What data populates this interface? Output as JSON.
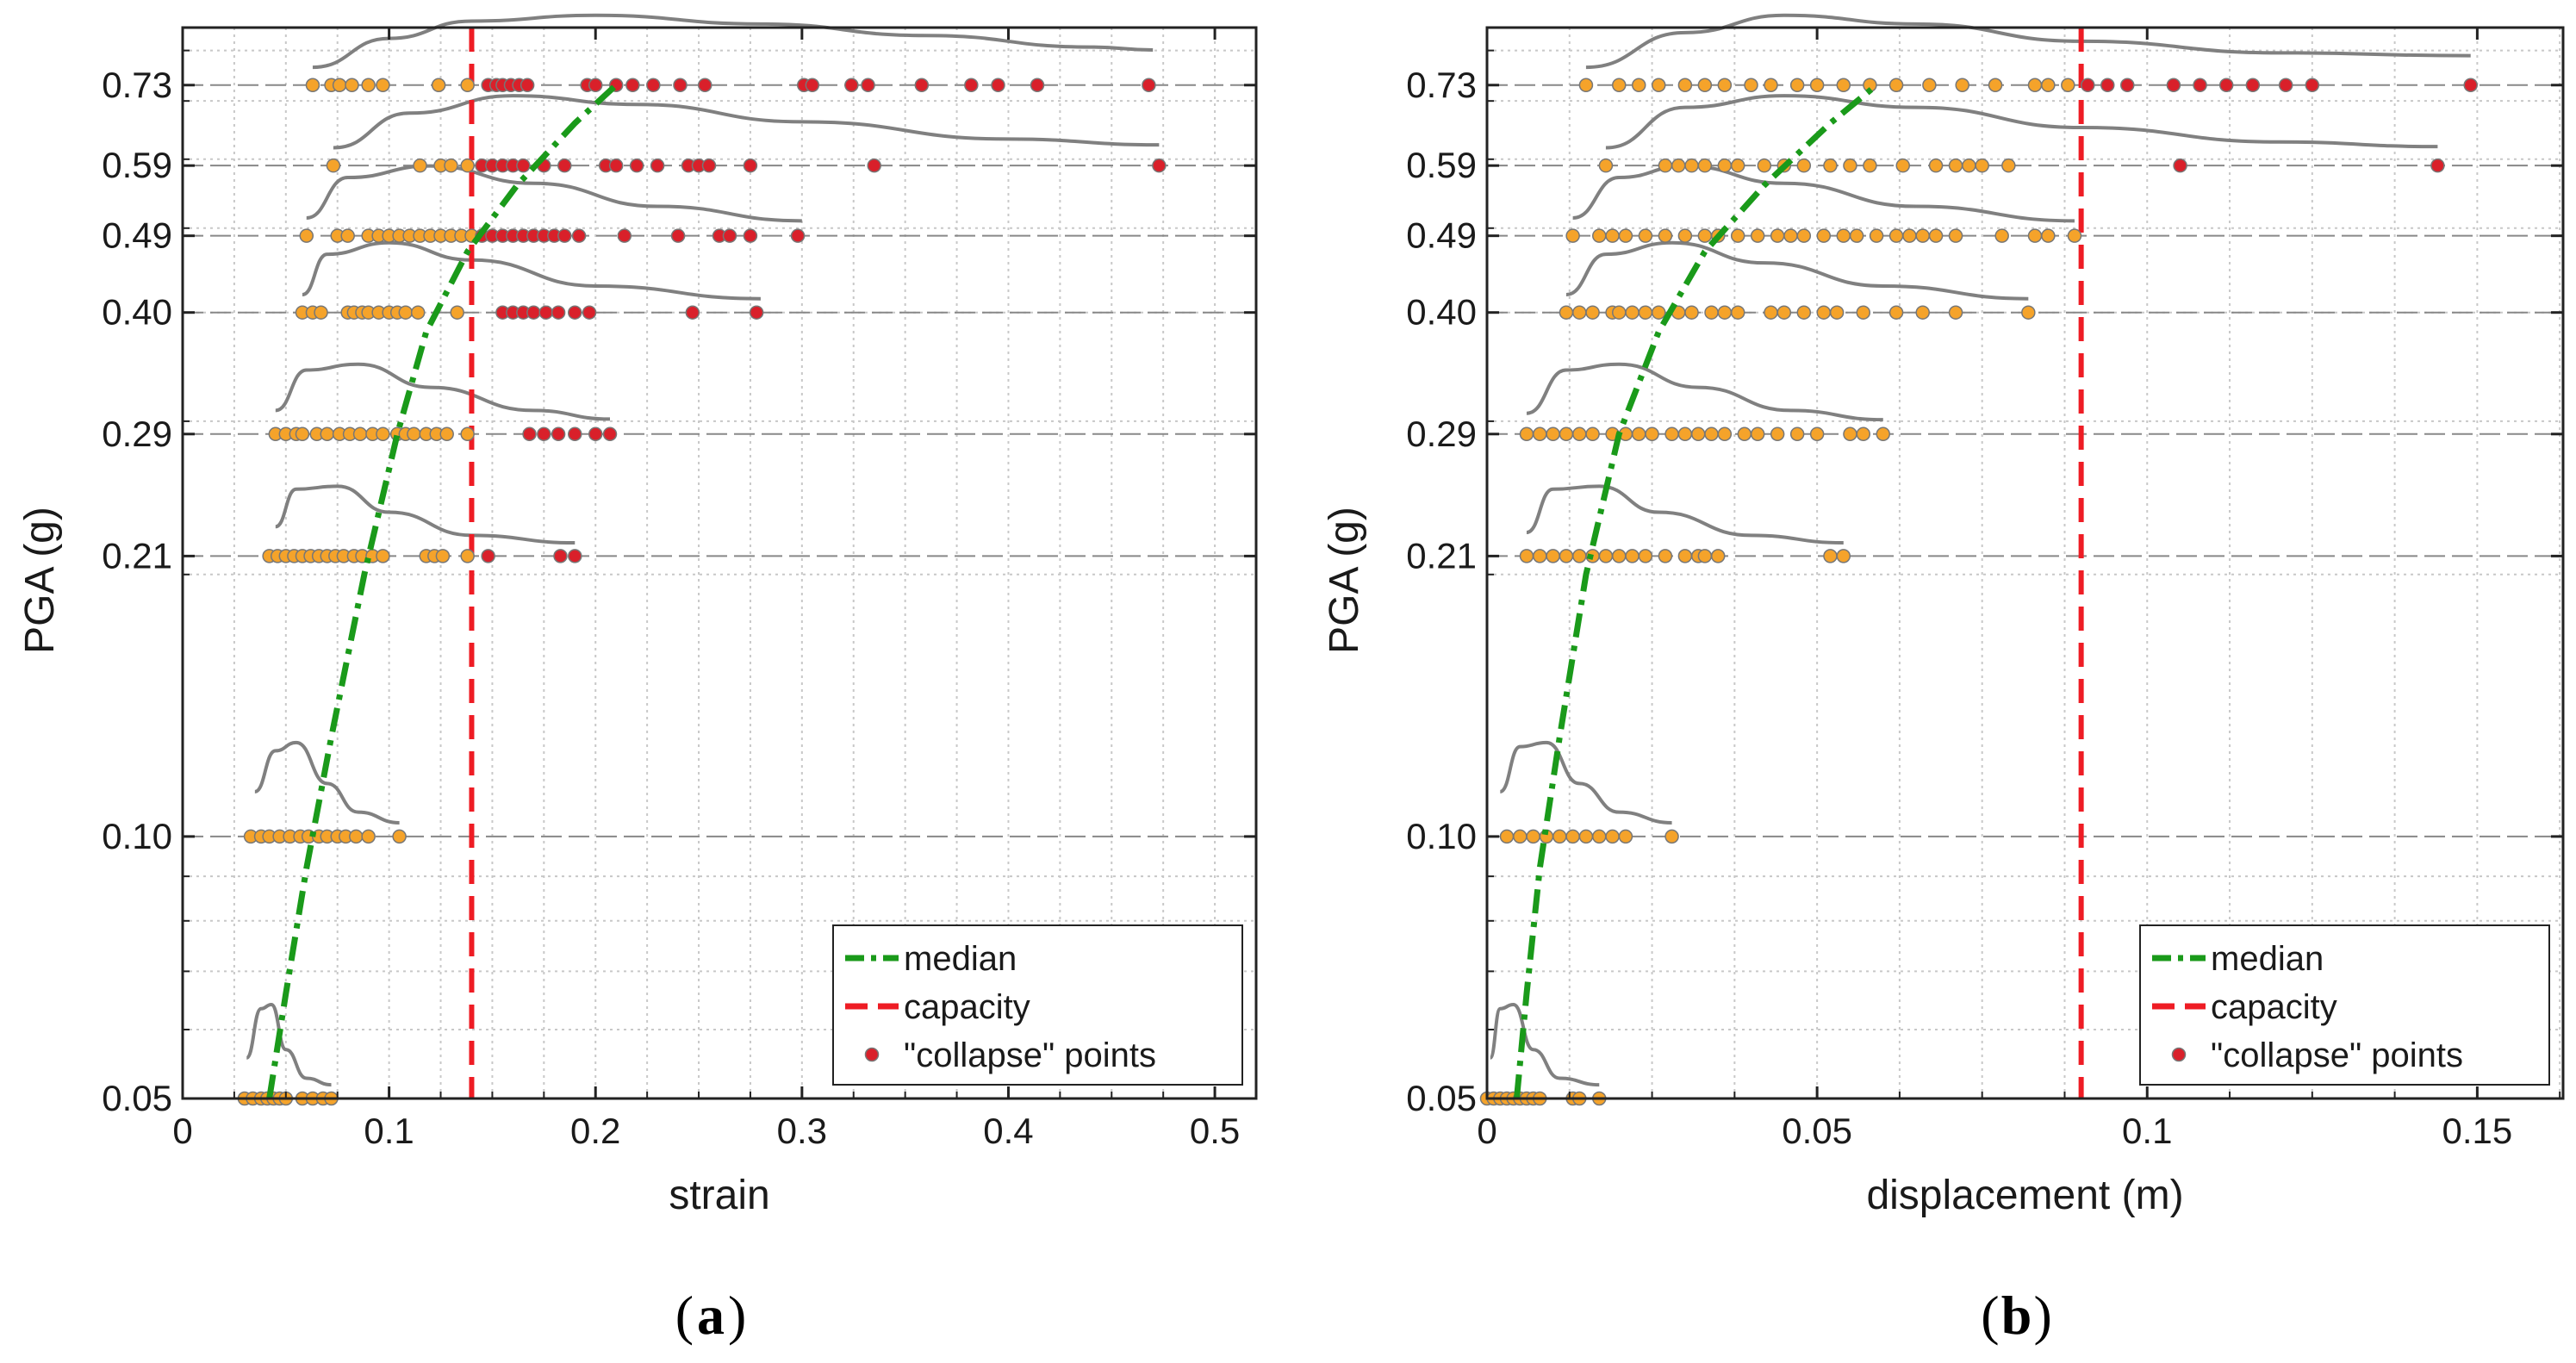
{
  "colors": {
    "median": "#1a9a1a",
    "capacity": "#ee1c24",
    "point_fill": "#f5a32a",
    "collapse_fill": "#d9202a",
    "point_edge": "#777777",
    "density_curve": "#808080",
    "grid": "#c8c8c8",
    "level_line": "#888888"
  },
  "legend": {
    "median": "median",
    "capacity": "capacity",
    "collapse": "\"collapse\" points"
  },
  "chart_data": [
    {
      "id": "a",
      "type": "scatter",
      "caption_letter": "a",
      "xlabel": "strain",
      "ylabel": "PGA (g)",
      "xlim": [
        0,
        0.52
      ],
      "ylim": [
        0.05,
        0.85
      ],
      "yscale": "log",
      "xticks": [
        0,
        0.1,
        0.2,
        0.3,
        0.4,
        0.5
      ],
      "xtick_labels": [
        "0",
        "0.1",
        "0.2",
        "0.3",
        "0.4",
        "0.5"
      ],
      "yticks": [
        0.05,
        0.1,
        0.21,
        0.29,
        0.4,
        0.49,
        0.59,
        0.73
      ],
      "ytick_labels": [
        "0.05",
        "0.10",
        "0.21",
        "0.29",
        "0.40",
        "0.49",
        "0.59",
        "0.73"
      ],
      "capacity": 0.14,
      "median": {
        "x": [
          0.042,
          0.05,
          0.06,
          0.072,
          0.088,
          0.104,
          0.118,
          0.138,
          0.162,
          0.19,
          0.21
        ],
        "y": [
          0.05,
          0.066,
          0.092,
          0.13,
          0.2,
          0.29,
          0.38,
          0.47,
          0.56,
          0.66,
          0.73
        ]
      },
      "levels": [
        {
          "pga": 0.73,
          "points": [
            0.063,
            0.072,
            0.076,
            0.082,
            0.09,
            0.097,
            0.124,
            0.138,
            0.148,
            0.152,
            0.155,
            0.159,
            0.163,
            0.167,
            0.196,
            0.2,
            0.21,
            0.218,
            0.228,
            0.241,
            0.253,
            0.301,
            0.305,
            0.324,
            0.332,
            0.358,
            0.382,
            0.395,
            0.414,
            0.468
          ],
          "curve": {
            "x": [
              0.063,
              0.1,
              0.14,
              0.2,
              0.28,
              0.36,
              0.44,
              0.47
            ],
            "h": [
              0.1,
              0.6,
              0.9,
              1.0,
              0.85,
              0.65,
              0.45,
              0.4
            ]
          }
        },
        {
          "pga": 0.59,
          "points": [
            0.073,
            0.115,
            0.125,
            0.13,
            0.138,
            0.145,
            0.15,
            0.155,
            0.16,
            0.165,
            0.175,
            0.185,
            0.205,
            0.21,
            0.22,
            0.23,
            0.245,
            0.25,
            0.255,
            0.275,
            0.335,
            0.473
          ],
          "curve": {
            "x": [
              0.073,
              0.11,
              0.16,
              0.22,
              0.3,
              0.4,
              0.473
            ],
            "h": [
              0.1,
              0.7,
              1.0,
              0.85,
              0.55,
              0.25,
              0.15
            ]
          }
        },
        {
          "pga": 0.49,
          "points": [
            0.06,
            0.075,
            0.08,
            0.09,
            0.095,
            0.1,
            0.105,
            0.11,
            0.115,
            0.12,
            0.125,
            0.13,
            0.135,
            0.14,
            0.145,
            0.15,
            0.155,
            0.16,
            0.165,
            0.17,
            0.175,
            0.18,
            0.185,
            0.192,
            0.214,
            0.24,
            0.26,
            0.265,
            0.275,
            0.298
          ],
          "curve": {
            "x": [
              0.06,
              0.08,
              0.12,
              0.17,
              0.23,
              0.3
            ],
            "h": [
              0.1,
              0.8,
              1.0,
              0.7,
              0.3,
              0.05
            ]
          }
        },
        {
          "pga": 0.4,
          "points": [
            0.058,
            0.063,
            0.067,
            0.08,
            0.083,
            0.087,
            0.09,
            0.095,
            0.1,
            0.104,
            0.108,
            0.114,
            0.133,
            0.155,
            0.16,
            0.165,
            0.17,
            0.176,
            0.182,
            0.19,
            0.197,
            0.247,
            0.278
          ],
          "curve": {
            "x": [
              0.058,
              0.07,
              0.1,
              0.14,
              0.2,
              0.28
            ],
            "h": [
              0.1,
              0.8,
              1.0,
              0.7,
              0.25,
              0.03
            ]
          }
        },
        {
          "pga": 0.29,
          "points": [
            0.045,
            0.05,
            0.055,
            0.058,
            0.065,
            0.07,
            0.076,
            0.081,
            0.086,
            0.092,
            0.097,
            0.104,
            0.108,
            0.112,
            0.118,
            0.123,
            0.128,
            0.138,
            0.168,
            0.175,
            0.182,
            0.19,
            0.2,
            0.207
          ],
          "curve": {
            "x": [
              0.045,
              0.06,
              0.085,
              0.12,
              0.17,
              0.207
            ],
            "h": [
              0.2,
              0.9,
              1.0,
              0.6,
              0.2,
              0.05
            ]
          }
        },
        {
          "pga": 0.21,
          "points": [
            0.042,
            0.046,
            0.05,
            0.054,
            0.058,
            0.062,
            0.066,
            0.07,
            0.074,
            0.078,
            0.083,
            0.087,
            0.092,
            0.097,
            0.118,
            0.122,
            0.126,
            0.138,
            0.148,
            0.183,
            0.19
          ],
          "curve": {
            "x": [
              0.045,
              0.055,
              0.075,
              0.1,
              0.14,
              0.19
            ],
            "h": [
              0.3,
              0.95,
              1.0,
              0.55,
              0.15,
              0.02
            ]
          }
        },
        {
          "pga": 0.1,
          "points": [
            0.033,
            0.038,
            0.042,
            0.047,
            0.052,
            0.057,
            0.061,
            0.066,
            0.07,
            0.075,
            0.079,
            0.084,
            0.09,
            0.105
          ],
          "curve": {
            "x": [
              0.035,
              0.045,
              0.055,
              0.07,
              0.085,
              0.105
            ],
            "h": [
              0.4,
              0.9,
              1.0,
              0.5,
              0.15,
              0.02
            ]
          }
        },
        {
          "pga": 0.05,
          "points": [
            0.03,
            0.034,
            0.038,
            0.041,
            0.044,
            0.047,
            0.05,
            0.058,
            0.063,
            0.068,
            0.072
          ],
          "curve": {
            "x": [
              0.031,
              0.038,
              0.043,
              0.05,
              0.06,
              0.072
            ],
            "h": [
              0.35,
              0.95,
              1.0,
              0.45,
              0.1,
              0.02
            ]
          }
        }
      ]
    },
    {
      "id": "b",
      "type": "scatter",
      "caption_letter": "b",
      "xlabel": "displacement (m)",
      "ylabel": "PGA (g)",
      "xlim": [
        0,
        0.163
      ],
      "ylim": [
        0.05,
        0.85
      ],
      "yscale": "log",
      "xticks": [
        0,
        0.05,
        0.1,
        0.15
      ],
      "xtick_labels": [
        "0",
        "0.05",
        "0.1",
        "0.15"
      ],
      "yticks": [
        0.05,
        0.1,
        0.21,
        0.29,
        0.4,
        0.49,
        0.59,
        0.73
      ],
      "ytick_labels": [
        "0.05",
        "0.10",
        "0.21",
        "0.29",
        "0.40",
        "0.49",
        "0.59",
        "0.73"
      ],
      "capacity": 0.09,
      "median": {
        "x": [
          0.0045,
          0.006,
          0.008,
          0.011,
          0.015,
          0.02,
          0.026,
          0.033,
          0.042,
          0.052,
          0.059
        ],
        "y": [
          0.05,
          0.066,
          0.092,
          0.13,
          0.2,
          0.29,
          0.38,
          0.47,
          0.56,
          0.66,
          0.73
        ]
      },
      "levels": [
        {
          "pga": 0.73,
          "points": [
            0.015,
            0.02,
            0.023,
            0.026,
            0.03,
            0.033,
            0.036,
            0.04,
            0.043,
            0.047,
            0.05,
            0.054,
            0.058,
            0.062,
            0.067,
            0.072,
            0.077,
            0.083,
            0.085,
            0.088,
            0.091,
            0.094,
            0.097,
            0.104,
            0.108,
            0.112,
            0.116,
            0.121,
            0.125,
            0.149
          ],
          "curve": {
            "x": [
              0.015,
              0.03,
              0.045,
              0.065,
              0.09,
              0.12,
              0.149
            ],
            "h": [
              0.1,
              0.7,
              1.0,
              0.85,
              0.55,
              0.35,
              0.3
            ]
          }
        },
        {
          "pga": 0.59,
          "points": [
            0.018,
            0.027,
            0.029,
            0.031,
            0.033,
            0.036,
            0.038,
            0.042,
            0.045,
            0.048,
            0.052,
            0.055,
            0.058,
            0.063,
            0.068,
            0.071,
            0.073,
            0.075,
            0.079,
            0.105,
            0.144
          ],
          "curve": {
            "x": [
              0.018,
              0.03,
              0.045,
              0.065,
              0.09,
              0.12,
              0.144
            ],
            "h": [
              0.1,
              0.8,
              1.0,
              0.8,
              0.45,
              0.2,
              0.12
            ]
          }
        },
        {
          "pga": 0.49,
          "points": [
            0.013,
            0.017,
            0.019,
            0.021,
            0.024,
            0.027,
            0.03,
            0.033,
            0.035,
            0.038,
            0.041,
            0.044,
            0.046,
            0.048,
            0.051,
            0.054,
            0.056,
            0.059,
            0.062,
            0.064,
            0.066,
            0.068,
            0.071,
            0.078,
            0.083,
            0.085,
            0.089
          ],
          "curve": {
            "x": [
              0.013,
              0.02,
              0.03,
              0.045,
              0.065,
              0.089
            ],
            "h": [
              0.1,
              0.8,
              1.0,
              0.7,
              0.3,
              0.05
            ]
          }
        },
        {
          "pga": 0.4,
          "points": [
            0.012,
            0.014,
            0.016,
            0.019,
            0.02,
            0.022,
            0.024,
            0.026,
            0.029,
            0.031,
            0.034,
            0.036,
            0.038,
            0.043,
            0.045,
            0.048,
            0.051,
            0.053,
            0.057,
            0.062,
            0.066,
            0.071,
            0.082
          ],
          "curve": {
            "x": [
              0.012,
              0.018,
              0.028,
              0.042,
              0.06,
              0.082
            ],
            "h": [
              0.1,
              0.8,
              1.0,
              0.65,
              0.25,
              0.03
            ]
          }
        },
        {
          "pga": 0.29,
          "points": [
            0.006,
            0.008,
            0.01,
            0.012,
            0.014,
            0.016,
            0.019,
            0.021,
            0.023,
            0.025,
            0.028,
            0.03,
            0.032,
            0.034,
            0.036,
            0.039,
            0.041,
            0.044,
            0.047,
            0.05,
            0.055,
            0.057,
            0.06
          ],
          "curve": {
            "x": [
              0.006,
              0.012,
              0.02,
              0.032,
              0.046,
              0.06
            ],
            "h": [
              0.15,
              0.9,
              1.0,
              0.6,
              0.2,
              0.04
            ]
          }
        },
        {
          "pga": 0.21,
          "points": [
            0.006,
            0.008,
            0.01,
            0.012,
            0.014,
            0.016,
            0.018,
            0.02,
            0.022,
            0.024,
            0.027,
            0.03,
            0.032,
            0.033,
            0.035,
            0.052,
            0.054
          ],
          "curve": {
            "x": [
              0.006,
              0.01,
              0.017,
              0.026,
              0.04,
              0.054
            ],
            "h": [
              0.2,
              0.95,
              1.0,
              0.55,
              0.15,
              0.02
            ]
          }
        },
        {
          "pga": 0.1,
          "points": [
            0.003,
            0.005,
            0.007,
            0.009,
            0.011,
            0.013,
            0.015,
            0.017,
            0.019,
            0.021,
            0.028
          ],
          "curve": {
            "x": [
              0.002,
              0.005,
              0.009,
              0.014,
              0.02,
              0.028
            ],
            "h": [
              0.4,
              0.95,
              1.0,
              0.5,
              0.15,
              0.02
            ]
          }
        },
        {
          "pga": 0.05,
          "points": [
            0.0,
            0.001,
            0.002,
            0.003,
            0.004,
            0.005,
            0.006,
            0.007,
            0.008,
            0.013,
            0.014,
            0.017
          ],
          "curve": {
            "x": [
              0.0005,
              0.002,
              0.004,
              0.007,
              0.011,
              0.017
            ],
            "h": [
              0.35,
              0.95,
              1.0,
              0.45,
              0.1,
              0.02
            ]
          }
        }
      ]
    }
  ]
}
